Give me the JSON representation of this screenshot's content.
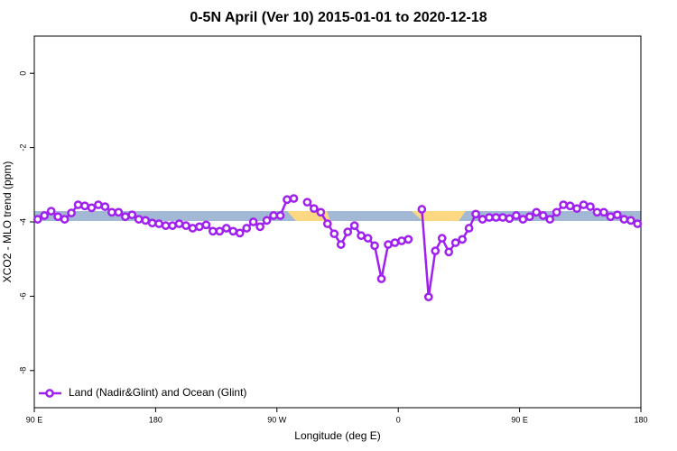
{
  "chart_data": {
    "type": "line",
    "title": "0-5N April (Ver 10)   2015-01-01 to 2020-12-18",
    "xlabel": "Longitude (deg E)",
    "ylabel": "XCO2 - MLO trend (ppm)",
    "xlim": [
      90,
      540
    ],
    "ylim": [
      -9,
      1
    ],
    "xticks": [
      {
        "value": 90,
        "label": "90 E"
      },
      180,
      {
        "value": 270,
        "label": "90 W"
      },
      {
        "value": 360,
        "label": "0"
      },
      {
        "value": 450,
        "label": "90 E"
      },
      {
        "value": 540,
        "label": "180"
      }
    ],
    "yticks": [
      0,
      -2,
      -4,
      -6,
      -8
    ],
    "legend": "lower left",
    "x": [
      92.5,
      97.5,
      102.5,
      107.5,
      112.5,
      117.5,
      122.5,
      127.5,
      132.5,
      137.5,
      142.5,
      147.5,
      152.5,
      157.5,
      162.5,
      167.5,
      172.5,
      177.5,
      182.5,
      187.5,
      192.5,
      197.5,
      202.5,
      207.5,
      212.5,
      217.5,
      222.5,
      227.5,
      232.5,
      237.5,
      242.5,
      247.5,
      252.5,
      257.5,
      262.5,
      267.5,
      272.5,
      277.5,
      282.5,
      287.5,
      292.5,
      297.5,
      302.5,
      307.5,
      312.5,
      317.5,
      322.5,
      327.5,
      332.5,
      337.5,
      342.5,
      347.5,
      352.5,
      357.5,
      362.5,
      367.5,
      372.5,
      377.5,
      382.5,
      387.5,
      392.5,
      397.5,
      402.5,
      407.5,
      412.5,
      417.5,
      422.5,
      427.5,
      432.5,
      437.5,
      442.5,
      447.5,
      452.5,
      457.5,
      462.5,
      467.5,
      472.5,
      477.5,
      482.5,
      487.5,
      492.5,
      497.5,
      502.5,
      507.5,
      512.5,
      517.5,
      522.5,
      527.5,
      532.5,
      537.5
    ],
    "series": [
      {
        "name": "Land (Nadir&Glint) and Ocean (Glint)",
        "color": "#a020f0",
        "values": [
          -3.93,
          -3.83,
          -3.71,
          -3.86,
          -3.93,
          -3.76,
          -3.54,
          -3.57,
          -3.62,
          -3.54,
          -3.59,
          -3.74,
          -3.74,
          -3.86,
          -3.81,
          -3.93,
          -3.96,
          -4.03,
          -4.05,
          -4.1,
          -4.1,
          -4.05,
          -4.1,
          -4.17,
          -4.13,
          -4.08,
          -4.25,
          -4.25,
          -4.17,
          -4.25,
          -4.3,
          -4.17,
          -4.0,
          -4.13,
          -3.96,
          -3.83,
          -3.83,
          -3.4,
          -3.37,
          null,
          -3.47,
          -3.64,
          -3.74,
          -4.05,
          -4.32,
          -4.61,
          -4.27,
          -4.1,
          -4.37,
          -4.44,
          -4.64,
          -5.53,
          -4.61,
          -4.56,
          -4.51,
          -4.47,
          null,
          -3.66,
          -6.02,
          -4.78,
          -4.44,
          -4.81,
          -4.56,
          -4.47,
          -4.17,
          -3.79,
          -3.93,
          -3.88,
          -3.88,
          -3.88,
          -3.91,
          -3.83,
          -3.93,
          -3.86,
          -3.74,
          -3.83,
          -3.93,
          -3.74,
          -3.54,
          -3.57,
          -3.64,
          -3.54,
          -3.59,
          -3.74,
          -3.74,
          -3.86,
          -3.81,
          -3.93,
          -3.96,
          -4.05
        ]
      }
    ]
  }
}
